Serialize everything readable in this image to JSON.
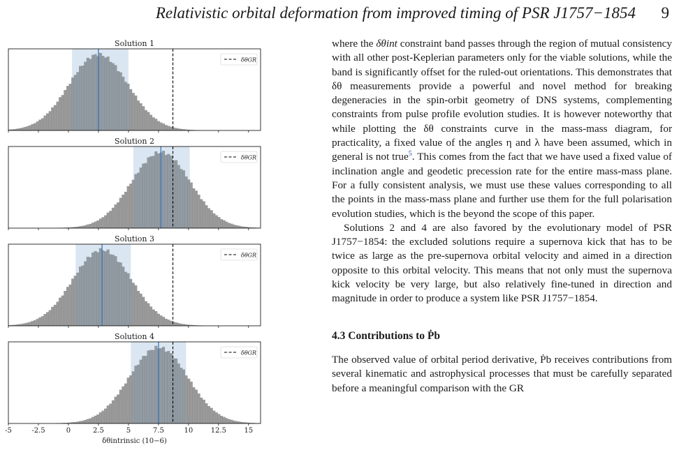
{
  "header": {
    "title": "Relativistic orbital deformation from improved timing of PSR J1757−1854",
    "page": "9"
  },
  "figure": {
    "legend_label": "δθGR",
    "xlabel": "δθintrinsic (10−6)",
    "xticks": [
      "-5",
      "-2.5",
      "0",
      "2.5",
      "5",
      "7.5",
      "10",
      "12.5",
      "15"
    ]
  },
  "chart_data": [
    {
      "type": "bar",
      "title": "Solution 1",
      "mean": 2.5,
      "sigma": 2.45,
      "band": [
        0.3,
        5.0
      ],
      "median_line": 2.5,
      "gr_line": 8.7,
      "xlim": [
        -5,
        16
      ],
      "legend": "top-right"
    },
    {
      "type": "bar",
      "title": "Solution 2",
      "mean": 7.7,
      "sigma": 2.45,
      "band": [
        5.4,
        10.1
      ],
      "median_line": 7.7,
      "gr_line": 8.7,
      "xlim": [
        -5,
        16
      ],
      "legend": "top-right"
    },
    {
      "type": "bar",
      "title": "Solution 3",
      "mean": 2.8,
      "sigma": 2.45,
      "band": [
        0.6,
        5.2
      ],
      "median_line": 2.8,
      "gr_line": 8.7,
      "xlim": [
        -5,
        16
      ],
      "legend": "top-right"
    },
    {
      "type": "bar",
      "title": "Solution 4",
      "mean": 7.5,
      "sigma": 2.45,
      "band": [
        5.2,
        9.8
      ],
      "median_line": 7.5,
      "gr_line": 8.7,
      "xlim": [
        -5,
        16
      ],
      "legend": "top-right"
    }
  ],
  "text": {
    "p1_a": "where the ",
    "p1_sym": "δθint",
    "p1_b": " constraint band passes through the region of mutual consistency with all other post-Keplerian parameters only for the viable solutions, while the band is significantly offset for the ruled-out orientations. This demonstrates that δθ measurements provide a powerful and novel method for breaking degeneracies in the spin-orbit geometry of DNS systems, complementing constraints from pulse profile evolution studies. It is however noteworthy that while plotting the δθ constraints curve in the mass-mass diagram, for practicality, a fixed value of the angles η and λ have been assumed, which in general is not true",
    "p1_fn": "5",
    "p1_c": ". This comes from the fact that we have used a fixed value of inclination angle and geodetic precession rate for the entire mass-mass plane. For a fully consistent analysis, we must use these values corresponding to all the points in the mass-mass plane and further use them for the full polarisation evolution studies, which is the beyond the scope of this paper.",
    "p2": "Solutions 2 and 4 are also favored by the evolutionary model of PSR J1757−1854: the excluded solutions require a supernova kick that has to be twice as large as the pre-supernova orbital velocity and aimed in a direction opposite to this orbital velocity. This means that not only must the supernova kick velocity be very large, but also relatively fine-tuned in direction and magnitude in order to produce a system like PSR J1757−1854.",
    "section": "4.3 Contributions to Ṗb",
    "p3": "The observed value of orbital period derivative, Ṗb receives contributions from several kinematic and astrophysical processes that must be carefully separated before a meaningful comparison with the GR"
  }
}
